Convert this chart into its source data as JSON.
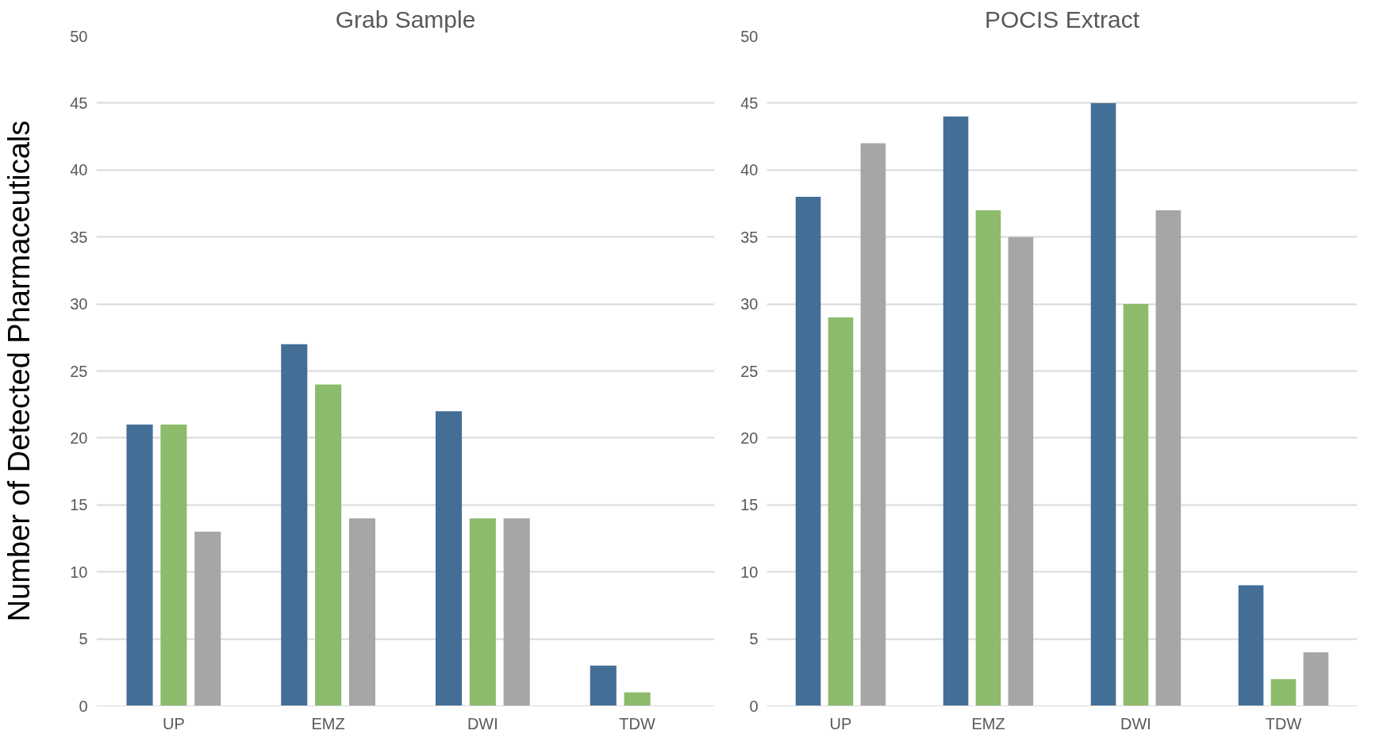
{
  "chart_data": [
    {
      "type": "bar",
      "title": "Grab Sample",
      "ylabel": "Number of Detected Pharmaceuticals",
      "categories": [
        "UP",
        "EMZ",
        "DWI",
        "TDW"
      ],
      "series": [
        {
          "color": "#436f97",
          "values": [
            21,
            27,
            22,
            3
          ]
        },
        {
          "color": "#8cbb6c",
          "values": [
            21,
            24,
            14,
            1
          ]
        },
        {
          "color": "#a6a6a6",
          "values": [
            13,
            14,
            14,
            0
          ]
        }
      ],
      "ylim": [
        0,
        50
      ],
      "yticks": [
        0,
        5,
        10,
        15,
        20,
        25,
        30,
        35,
        40,
        45,
        50
      ],
      "grid": "y"
    },
    {
      "type": "bar",
      "title": "POCIS Extract",
      "categories": [
        "UP",
        "EMZ",
        "DWI",
        "TDW"
      ],
      "series": [
        {
          "color": "#436f97",
          "values": [
            38,
            44,
            45,
            9
          ]
        },
        {
          "color": "#8cbb6c",
          "values": [
            29,
            37,
            30,
            2
          ]
        },
        {
          "color": "#a6a6a6",
          "values": [
            42,
            35,
            37,
            4
          ]
        }
      ],
      "ylim": [
        0,
        50
      ],
      "yticks": [
        0,
        5,
        10,
        15,
        20,
        25,
        30,
        35,
        40,
        45,
        50
      ],
      "grid": "y"
    }
  ]
}
